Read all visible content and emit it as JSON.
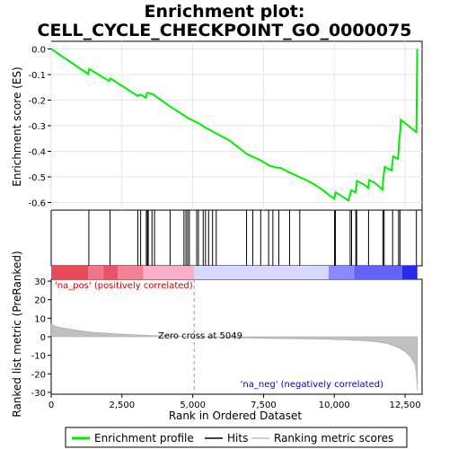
{
  "chart_data": {
    "type": "line",
    "title_line1": "Enrichment plot:",
    "title_line2": "CELL_CYCLE_CHECKPOINT_GO_0000075",
    "top_panel": {
      "ylabel": "Enrichment score (ES)",
      "ylim": [
        -0.63,
        0.03
      ],
      "yticks": [
        0.0,
        -0.1,
        -0.2,
        -0.3,
        -0.4,
        -0.5,
        -0.6
      ],
      "ytick_labels": [
        "0.0",
        "-0.1",
        "-0.2",
        "-0.3",
        "-0.4",
        "-0.5",
        "-0.6"
      ],
      "line_color": "#00ee00",
      "points": [
        [
          0,
          0.0
        ],
        [
          1310,
          -0.098
        ],
        [
          1340,
          -0.078
        ],
        [
          2050,
          -0.125
        ],
        [
          2090,
          -0.115
        ],
        [
          3050,
          -0.183
        ],
        [
          3150,
          -0.178
        ],
        [
          3350,
          -0.19
        ],
        [
          3380,
          -0.172
        ],
        [
          3430,
          -0.171
        ],
        [
          3600,
          -0.178
        ],
        [
          4200,
          -0.225
        ],
        [
          4700,
          -0.26
        ],
        [
          4800,
          -0.268
        ],
        [
          4900,
          -0.274
        ],
        [
          5000,
          -0.279
        ],
        [
          5200,
          -0.29
        ],
        [
          5400,
          -0.304
        ],
        [
          5600,
          -0.316
        ],
        [
          5900,
          -0.334
        ],
        [
          6300,
          -0.358
        ],
        [
          6900,
          -0.41
        ],
        [
          7100,
          -0.42
        ],
        [
          7400,
          -0.435
        ],
        [
          7700,
          -0.456
        ],
        [
          7900,
          -0.462
        ],
        [
          8100,
          -0.465
        ],
        [
          8400,
          -0.482
        ],
        [
          8700,
          -0.497
        ],
        [
          9000,
          -0.512
        ],
        [
          9300,
          -0.53
        ],
        [
          9600,
          -0.552
        ],
        [
          9850,
          -0.574
        ],
        [
          10000,
          -0.585
        ],
        [
          10050,
          -0.56
        ],
        [
          10300,
          -0.578
        ],
        [
          10500,
          -0.592
        ],
        [
          10550,
          -0.572
        ],
        [
          10600,
          -0.552
        ],
        [
          10750,
          -0.56
        ],
        [
          10780,
          -0.536
        ],
        [
          10800,
          -0.516
        ],
        [
          11050,
          -0.53
        ],
        [
          11200,
          -0.543
        ],
        [
          11230,
          -0.512
        ],
        [
          11450,
          -0.525
        ],
        [
          11700,
          -0.55
        ],
        [
          11720,
          -0.52
        ],
        [
          11750,
          -0.49
        ],
        [
          11780,
          -0.461
        ],
        [
          12020,
          -0.475
        ],
        [
          12050,
          -0.448
        ],
        [
          12080,
          -0.42
        ],
        [
          12250,
          -0.43
        ],
        [
          12270,
          -0.4
        ],
        [
          12290,
          -0.36
        ],
        [
          12330,
          -0.32
        ],
        [
          12350,
          -0.277
        ],
        [
          12900,
          -0.325
        ],
        [
          12930,
          0.0
        ]
      ]
    },
    "hits": [
      1330,
      2080,
      3060,
      3160,
      3360,
      3400,
      3430,
      3560,
      3650,
      4200,
      4690,
      4760,
      4820,
      4880,
      5140,
      5200,
      5370,
      5450,
      5560,
      5700,
      5830,
      6900,
      7120,
      7400,
      7680,
      7830,
      8040,
      8420,
      8780,
      10010,
      10040,
      10560,
      10610,
      10760,
      10790,
      11210,
      11720,
      11760,
      12060,
      12270,
      12320,
      12900
    ],
    "rank_bar_colors": [
      "#e84a5a",
      "#f0758a",
      "#f8b0c8",
      "#d8d8ff",
      "#8a8aff",
      "#2a2aee"
    ],
    "bottom_panel": {
      "ylabel": "Ranked list metric (PreRanked)",
      "xlabel": "Rank in Ordered Dataset",
      "ylim": [
        -31,
        31
      ],
      "yticks": [
        30,
        20,
        10,
        0,
        -10,
        -20,
        -30
      ],
      "ytick_labels": [
        "30",
        "20",
        "10",
        "0",
        "-10",
        "-20",
        "-30"
      ],
      "metric": [
        [
          0,
          7.0
        ],
        [
          100,
          6.0
        ],
        [
          250,
          5.2
        ],
        [
          500,
          4.6
        ],
        [
          800,
          3.8
        ],
        [
          1200,
          2.9
        ],
        [
          1600,
          2.3
        ],
        [
          2000,
          1.9
        ],
        [
          2500,
          1.4
        ],
        [
          3000,
          1.0
        ],
        [
          3500,
          0.7
        ],
        [
          4000,
          0.45
        ],
        [
          4500,
          0.25
        ],
        [
          5049,
          0.0
        ],
        [
          5500,
          -0.2
        ],
        [
          6500,
          -0.55
        ],
        [
          7500,
          -0.85
        ],
        [
          8500,
          -1.05
        ],
        [
          9500,
          -1.25
        ],
        [
          10000,
          -1.5
        ],
        [
          10500,
          -1.75
        ],
        [
          11000,
          -2.1
        ],
        [
          11500,
          -2.7
        ],
        [
          11900,
          -3.8
        ],
        [
          12200,
          -5.5
        ],
        [
          12500,
          -8.0
        ],
        [
          12700,
          -11.0
        ],
        [
          12850,
          -15.0
        ],
        [
          12900,
          -20.0
        ],
        [
          12935,
          -29.0
        ]
      ],
      "pos_label": "'na_pos' (positively correlated)",
      "neg_label": "'na_neg' (negatively correlated)",
      "zero_cross_label": "Zero cross at 5049",
      "zero_cross": 5049
    },
    "xlim": [
      0,
      13100
    ],
    "xticks": [
      0,
      2500,
      5000,
      7500,
      10000,
      12500
    ],
    "xtick_labels": [
      "0",
      "2,500",
      "5,000",
      "7,500",
      "10,000",
      "12,500"
    ],
    "legend": {
      "items": [
        {
          "label": "Enrichment profile",
          "color": "#00ee00"
        },
        {
          "label": "Hits",
          "color": "#000000"
        },
        {
          "label": "Ranking metric scores",
          "color": "#c0c0c0"
        }
      ]
    }
  }
}
